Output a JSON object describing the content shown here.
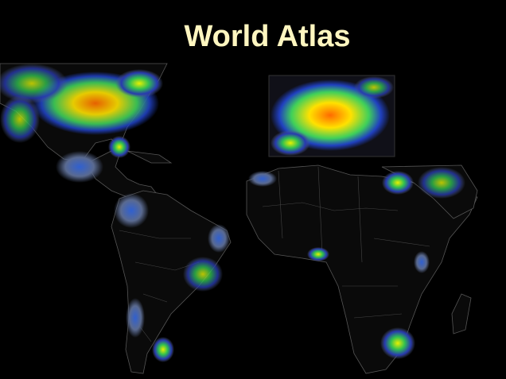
{
  "title": "World Atlas"
}
